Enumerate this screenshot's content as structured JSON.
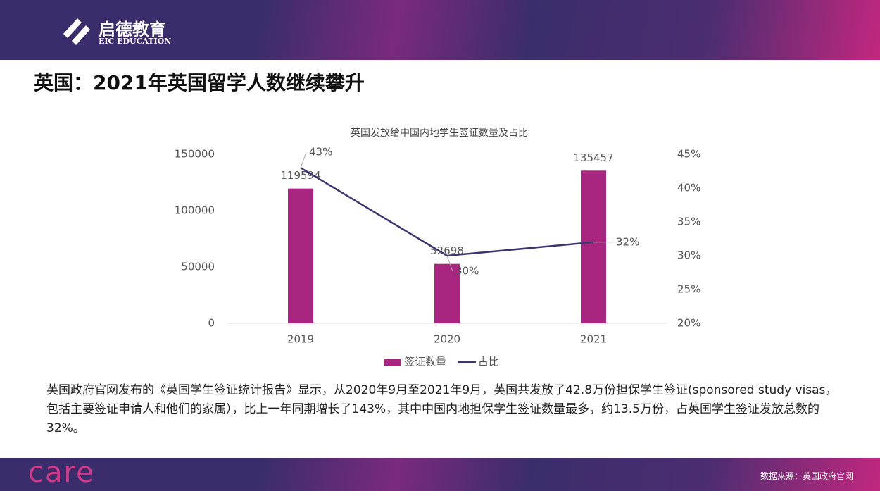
{
  "header": {
    "brand": "启德教育",
    "brand_en": "EIC EDUCATION",
    "title": "英国：2021年英国留学人数继续攀升"
  },
  "chart_data": {
    "type": "bar",
    "title": "英国发放给中国内地学生签证数量及占比",
    "categories": [
      "2019",
      "2020",
      "2021"
    ],
    "series": [
      {
        "name": "签证数量",
        "color": "#a8267f",
        "values": [
          119594,
          52698,
          135457
        ]
      },
      {
        "name": "占比",
        "type": "line",
        "axis": "y2",
        "color": "#3d3570",
        "values": [
          43,
          30,
          32
        ],
        "value_labels": [
          "43%",
          "30%",
          "32%"
        ]
      }
    ],
    "ylim": [
      0,
      150000
    ],
    "yticks": [
      0,
      50000,
      100000,
      150000
    ],
    "y2lim": [
      20,
      45
    ],
    "y2ticks": [
      {
        "value": 20,
        "label": "20%"
      },
      {
        "value": 25,
        "label": "25%"
      },
      {
        "value": 30,
        "label": "30%"
      },
      {
        "value": 35,
        "label": "35%"
      },
      {
        "value": 40,
        "label": "40%"
      },
      {
        "value": 45,
        "label": "45%"
      }
    ],
    "legend": "bottom",
    "grid": false
  },
  "body": {
    "text": "英国政府官网发布的《英国学生签证统计报告》显示，从2020年9月至2021年9月，英国共发放了42.8万份担保学生签证(sponsored study visas，包括主要签证申请人和他们的家属），比上一年同期增长了143%，其中中国内地担保学生签证数量最多，约13.5万份，占英国学生签证发放总数的32%。"
  },
  "footer": {
    "logo": "care",
    "source": "数据来源：英国政府官网"
  }
}
